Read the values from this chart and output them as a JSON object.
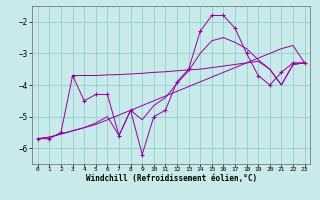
{
  "bg_color": "#c8eaea",
  "line_color": "#990099",
  "xlim": [
    -0.5,
    23.5
  ],
  "ylim": [
    -6.5,
    -1.5
  ],
  "xticks": [
    0,
    1,
    2,
    3,
    4,
    5,
    6,
    7,
    8,
    9,
    10,
    11,
    12,
    13,
    14,
    15,
    16,
    17,
    18,
    19,
    20,
    21,
    22,
    23
  ],
  "yticks": [
    -6,
    -5,
    -4,
    -3,
    -2
  ],
  "xlabel": "Windchill (Refroidissement éolien,°C)",
  "line1_x": [
    0,
    1,
    2,
    3,
    4,
    5,
    6,
    7,
    8,
    9,
    10,
    11,
    12,
    13,
    14,
    15,
    16,
    17,
    18,
    19,
    20,
    21,
    22,
    23
  ],
  "line1_y": [
    -5.7,
    -5.7,
    -5.5,
    -3.7,
    -4.5,
    -4.3,
    -4.3,
    -5.6,
    -4.8,
    -6.2,
    -5.0,
    -4.8,
    -3.9,
    -3.5,
    -2.3,
    -1.8,
    -1.8,
    -2.2,
    -3.0,
    -3.7,
    -4.0,
    -3.6,
    -3.3,
    -3.3
  ],
  "line2_x": [
    0,
    1,
    2,
    3,
    4,
    5,
    6,
    7,
    8,
    9,
    10,
    11,
    12,
    13,
    14,
    15,
    16,
    17,
    18,
    19,
    20,
    21,
    22,
    23
  ],
  "line2_y": [
    -5.7,
    -5.65,
    -5.55,
    -5.45,
    -5.35,
    -5.25,
    -5.1,
    -4.95,
    -4.8,
    -4.65,
    -4.5,
    -4.35,
    -4.2,
    -4.05,
    -3.9,
    -3.75,
    -3.6,
    -3.45,
    -3.3,
    -3.15,
    -3.0,
    -2.85,
    -2.75,
    -3.3
  ],
  "line3_x": [
    0,
    1,
    2,
    3,
    4,
    5,
    6,
    7,
    8,
    9,
    10,
    11,
    12,
    13,
    14,
    15,
    16,
    17,
    18,
    19,
    20,
    21,
    22,
    23
  ],
  "line3_y": [
    -5.7,
    -5.65,
    -5.55,
    -5.45,
    -5.35,
    -5.2,
    -5.0,
    -5.6,
    -4.8,
    -5.1,
    -4.65,
    -4.4,
    -3.95,
    -3.55,
    -3.0,
    -2.6,
    -2.5,
    -2.65,
    -2.85,
    -3.2,
    -3.5,
    -4.0,
    -3.35,
    -3.3
  ],
  "line4_x": [
    3,
    4,
    5,
    6,
    7,
    8,
    9,
    10,
    11,
    12,
    13,
    14,
    15,
    16,
    17,
    18,
    19,
    20,
    21,
    22,
    23
  ],
  "line4_y": [
    -3.7,
    -3.7,
    -3.7,
    -3.68,
    -3.67,
    -3.65,
    -3.63,
    -3.6,
    -3.58,
    -3.55,
    -3.52,
    -3.5,
    -3.45,
    -3.4,
    -3.35,
    -3.3,
    -3.25,
    -3.5,
    -4.0,
    -3.35,
    -3.3
  ]
}
